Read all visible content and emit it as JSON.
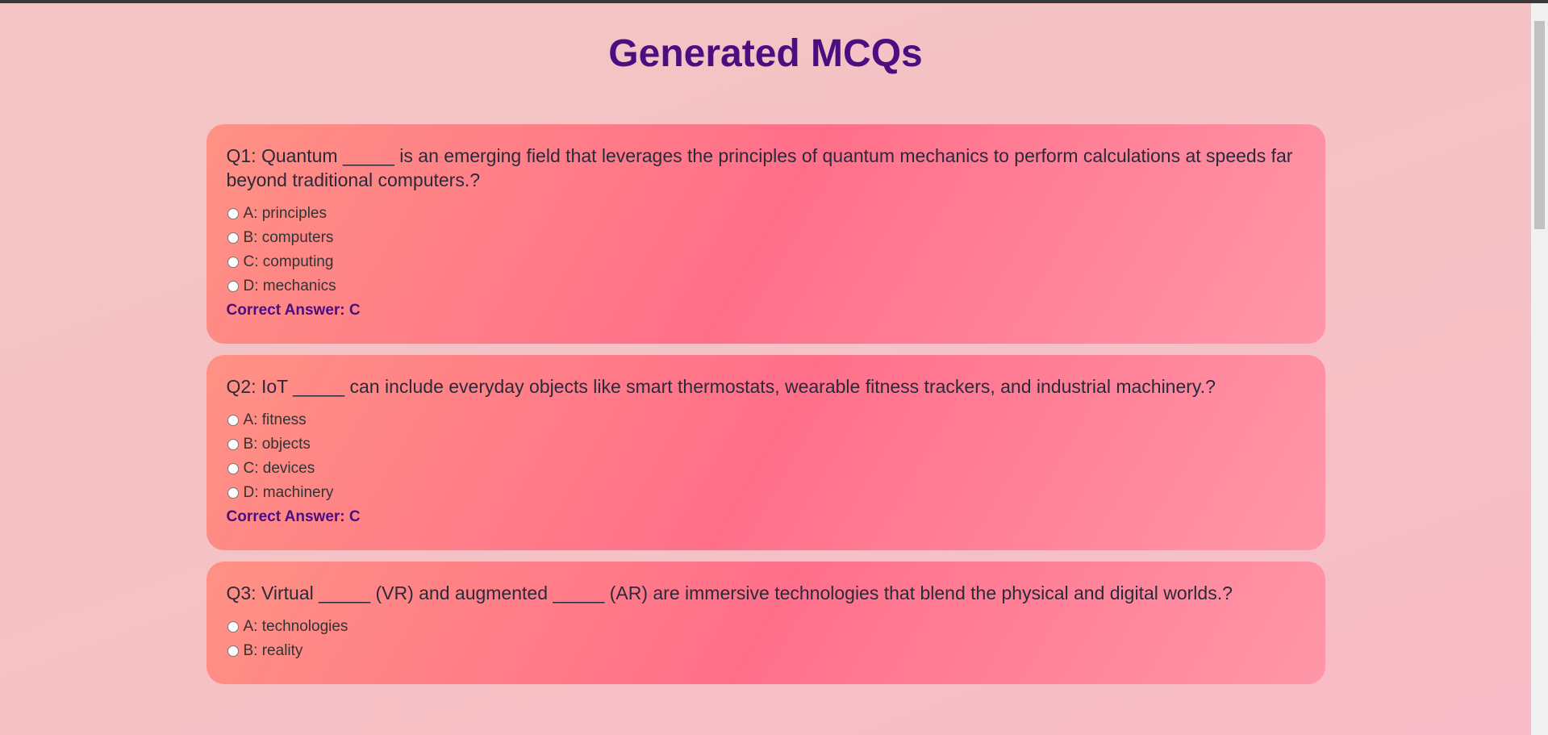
{
  "header": {
    "title": "Generated MCQs"
  },
  "questions": [
    {
      "question": "Q1: Quantum _____ is an emerging field that leverages the principles of quantum mechanics to perform calculations at speeds far beyond traditional computers.?",
      "options": [
        "A: principles",
        "B: computers",
        "C: computing",
        "D: mechanics"
      ],
      "answer": "Correct Answer: C"
    },
    {
      "question": "Q2: IoT _____ can include everyday objects like smart thermostats, wearable fitness trackers, and industrial machinery.?",
      "options": [
        "A: fitness",
        "B: objects",
        "C: devices",
        "D: machinery"
      ],
      "answer": "Correct Answer: C"
    },
    {
      "question": "Q3: Virtual _____ (VR) and augmented _____ (AR) are immersive technologies that blend the physical and digital worlds.?",
      "options": [
        "A: technologies",
        "B: reality"
      ]
    }
  ]
}
